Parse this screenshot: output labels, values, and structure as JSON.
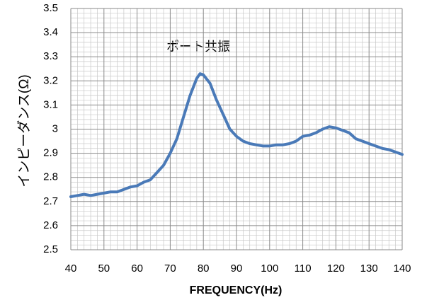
{
  "chart_data": {
    "type": "line",
    "y_label": "インピーダンス(Ω)",
    "x_label": "FREQUENCY(Hz)",
    "annotation": "ポート共振",
    "color": "#4a7ab8",
    "grid": true,
    "xlim": [
      40,
      140
    ],
    "xticks": [
      40,
      50,
      60,
      70,
      80,
      90,
      100,
      110,
      120,
      130,
      140
    ],
    "ylim": [
      2.5,
      3.5
    ],
    "yticks": [
      2.5,
      2.6,
      2.7,
      2.8,
      2.9,
      3,
      3.1,
      3.2,
      3.3,
      3.4,
      3.5
    ],
    "x": [
      40,
      42,
      44,
      46,
      48,
      50,
      52,
      54,
      56,
      58,
      60,
      62,
      64,
      66,
      68,
      70,
      72,
      74,
      76,
      78,
      79,
      80,
      82,
      84,
      86,
      88,
      90,
      92,
      94,
      96,
      98,
      100,
      102,
      104,
      106,
      108,
      110,
      112,
      114,
      116,
      118,
      120,
      122,
      124,
      126,
      128,
      130,
      132,
      134,
      136,
      138,
      140
    ],
    "values": [
      2.72,
      2.725,
      2.73,
      2.725,
      2.73,
      2.735,
      2.74,
      2.74,
      2.75,
      2.76,
      2.765,
      2.78,
      2.79,
      2.82,
      2.85,
      2.9,
      2.96,
      3.05,
      3.14,
      3.21,
      3.23,
      3.225,
      3.19,
      3.12,
      3.06,
      3.0,
      2.97,
      2.95,
      2.94,
      2.935,
      2.93,
      2.93,
      2.935,
      2.935,
      2.94,
      2.95,
      2.97,
      2.975,
      2.985,
      3.0,
      3.01,
      3.005,
      2.995,
      2.985,
      2.96,
      2.95,
      2.94,
      2.93,
      2.92,
      2.915,
      2.905,
      2.895
    ]
  }
}
